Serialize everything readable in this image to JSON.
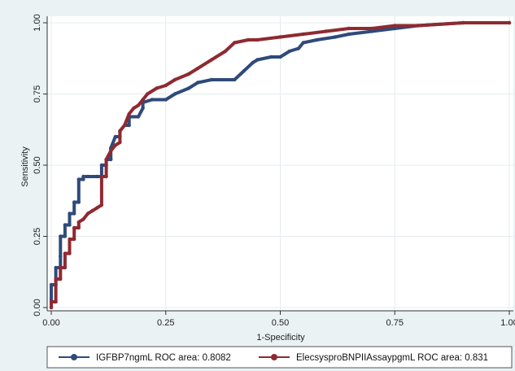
{
  "chart_data": {
    "type": "line",
    "xlabel": "1-Specificity",
    "ylabel": "Sensitivity",
    "xlim": [
      0,
      1
    ],
    "ylim": [
      0,
      1
    ],
    "x_ticks": [
      "0.00",
      "0.25",
      "0.50",
      "0.75",
      "1.00"
    ],
    "y_ticks": [
      "0.00",
      "0.25",
      "0.50",
      "0.75",
      "1.00"
    ],
    "grid": true,
    "legend_position": "bottom",
    "series": [
      {
        "name": "IGFBP7ngmL ROC area: 0.8082",
        "color": "#2f4a7a",
        "x": [
          0.0,
          0.0,
          0.01,
          0.01,
          0.02,
          0.02,
          0.02,
          0.03,
          0.03,
          0.04,
          0.04,
          0.05,
          0.05,
          0.06,
          0.06,
          0.07,
          0.07,
          0.08,
          0.1,
          0.11,
          0.11,
          0.12,
          0.12,
          0.13,
          0.13,
          0.14,
          0.15,
          0.15,
          0.16,
          0.17,
          0.17,
          0.19,
          0.2,
          0.2,
          0.22,
          0.25,
          0.27,
          0.3,
          0.32,
          0.35,
          0.4,
          0.42,
          0.44,
          0.45,
          0.48,
          0.5,
          0.52,
          0.54,
          0.55,
          0.58,
          0.62,
          0.65,
          0.7,
          0.75,
          0.8,
          0.9,
          1.0
        ],
        "y": [
          0.0,
          0.08,
          0.08,
          0.14,
          0.14,
          0.18,
          0.25,
          0.25,
          0.29,
          0.29,
          0.33,
          0.33,
          0.37,
          0.37,
          0.45,
          0.45,
          0.46,
          0.46,
          0.46,
          0.46,
          0.5,
          0.5,
          0.52,
          0.52,
          0.56,
          0.6,
          0.6,
          0.62,
          0.64,
          0.64,
          0.67,
          0.67,
          0.7,
          0.72,
          0.73,
          0.73,
          0.75,
          0.77,
          0.79,
          0.8,
          0.8,
          0.83,
          0.86,
          0.87,
          0.88,
          0.88,
          0.9,
          0.91,
          0.93,
          0.94,
          0.95,
          0.96,
          0.97,
          0.98,
          0.99,
          1.0,
          1.0
        ]
      },
      {
        "name": "ElecsysproBNPIIAssaypgmL ROC area: 0.831",
        "color": "#8e2a31",
        "x": [
          0.0,
          0.0,
          0.01,
          0.01,
          0.02,
          0.02,
          0.03,
          0.03,
          0.04,
          0.04,
          0.05,
          0.05,
          0.06,
          0.06,
          0.07,
          0.08,
          0.09,
          0.1,
          0.11,
          0.11,
          0.12,
          0.12,
          0.13,
          0.14,
          0.15,
          0.15,
          0.16,
          0.17,
          0.18,
          0.19,
          0.2,
          0.21,
          0.23,
          0.25,
          0.27,
          0.3,
          0.32,
          0.35,
          0.38,
          0.4,
          0.43,
          0.45,
          0.5,
          0.55,
          0.6,
          0.65,
          0.7,
          0.75,
          0.8,
          0.9,
          1.0
        ],
        "y": [
          0.0,
          0.02,
          0.02,
          0.1,
          0.1,
          0.14,
          0.14,
          0.19,
          0.19,
          0.24,
          0.24,
          0.28,
          0.28,
          0.3,
          0.31,
          0.33,
          0.34,
          0.35,
          0.36,
          0.46,
          0.46,
          0.52,
          0.55,
          0.57,
          0.58,
          0.62,
          0.64,
          0.68,
          0.7,
          0.71,
          0.73,
          0.75,
          0.77,
          0.78,
          0.8,
          0.82,
          0.84,
          0.87,
          0.9,
          0.93,
          0.94,
          0.94,
          0.95,
          0.96,
          0.97,
          0.98,
          0.98,
          0.99,
          0.99,
          1.0,
          1.0
        ]
      }
    ]
  }
}
